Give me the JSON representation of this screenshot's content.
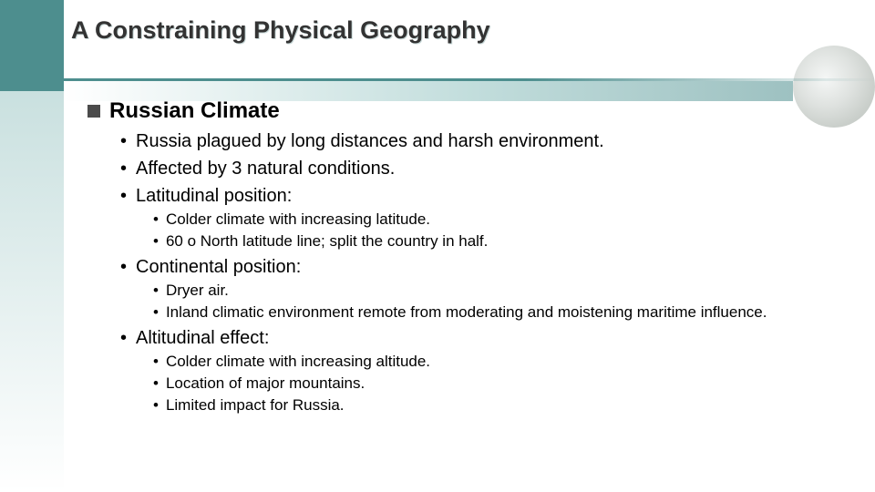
{
  "colors": {
    "accent": "#4d8e8e",
    "title_text": "#333333",
    "body_text": "#000000",
    "square_marker": "#4b4b4b",
    "background": "#ffffff"
  },
  "typography": {
    "title_fontsize": 27,
    "L1_fontsize": 24,
    "L2_fontsize": 20,
    "L3_fontsize": 17,
    "font_family": "Arial"
  },
  "title": "A Constraining Physical Geography",
  "outline": {
    "heading": "Russian Climate",
    "items": [
      {
        "level": 2,
        "text": "Russia plagued by long distances and harsh environment."
      },
      {
        "level": 2,
        "text": "Affected by 3 natural conditions."
      },
      {
        "level": 2,
        "text": "Latitudinal position:"
      },
      {
        "level": 3,
        "text": "Colder climate with increasing latitude."
      },
      {
        "level": 3,
        "text": "60 o North latitude line; split the country in half."
      },
      {
        "level": 2,
        "text": "Continental position:"
      },
      {
        "level": 3,
        "text": "Dryer air."
      },
      {
        "level": 3,
        "text": "Inland climatic environment remote from moderating and moistening maritime influence."
      },
      {
        "level": 2,
        "text": "Altitudinal effect:"
      },
      {
        "level": 3,
        "text": "Colder climate with increasing altitude."
      },
      {
        "level": 3,
        "text": "Location of major mountains."
      },
      {
        "level": 3,
        "text": "Limited impact for Russia."
      }
    ]
  }
}
